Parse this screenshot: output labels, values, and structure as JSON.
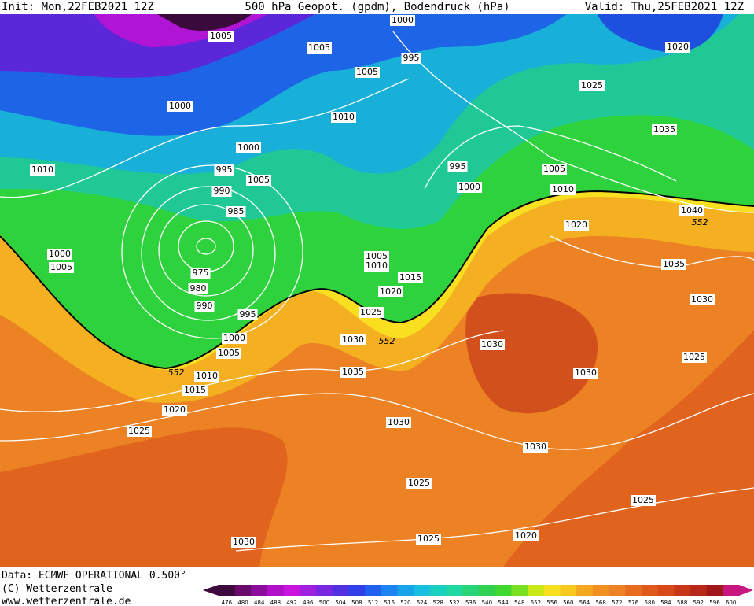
{
  "header": {
    "init": "Init: Mon,22FEB2021 12Z",
    "title": "500 hPa Geopot. (gpdm), Bodendruck (hPa)",
    "valid": "Valid: Thu,25FEB2021 12Z"
  },
  "isobar_labels": [
    "1005",
    "1005",
    "1005",
    "1000",
    "995",
    "1020",
    "1025",
    "1000",
    "1010",
    "1035",
    "1000",
    "995",
    "1005",
    "995",
    "1005",
    "1010",
    "990",
    "1000",
    "1010",
    "985",
    "1040",
    "552",
    "1020",
    "1000",
    "1005",
    "1005",
    "1010",
    "1035",
    "975",
    "1015",
    "980",
    "1020",
    "1030",
    "990",
    "995",
    "1025",
    "1000",
    "1030",
    "552",
    "1030",
    "1005",
    "1025",
    "552",
    "1010",
    "1030",
    "1035",
    "1015",
    "1020",
    "1030",
    "1025",
    "1030",
    "1025",
    "1025",
    "1020",
    "1025",
    "1030"
  ],
  "footer": {
    "data": "Data: ECMWF OPERATIONAL 0.500°",
    "copyright": "(C) Wetterzentrale",
    "url": "www.wetterzentrale.de"
  },
  "colorbar": {
    "labels": [
      476,
      480,
      484,
      488,
      492,
      496,
      500,
      504,
      508,
      512,
      516,
      520,
      524,
      528,
      532,
      536,
      540,
      544,
      548,
      552,
      556,
      560,
      564,
      568,
      572,
      576,
      580,
      584,
      588,
      592,
      596,
      600
    ]
  }
}
